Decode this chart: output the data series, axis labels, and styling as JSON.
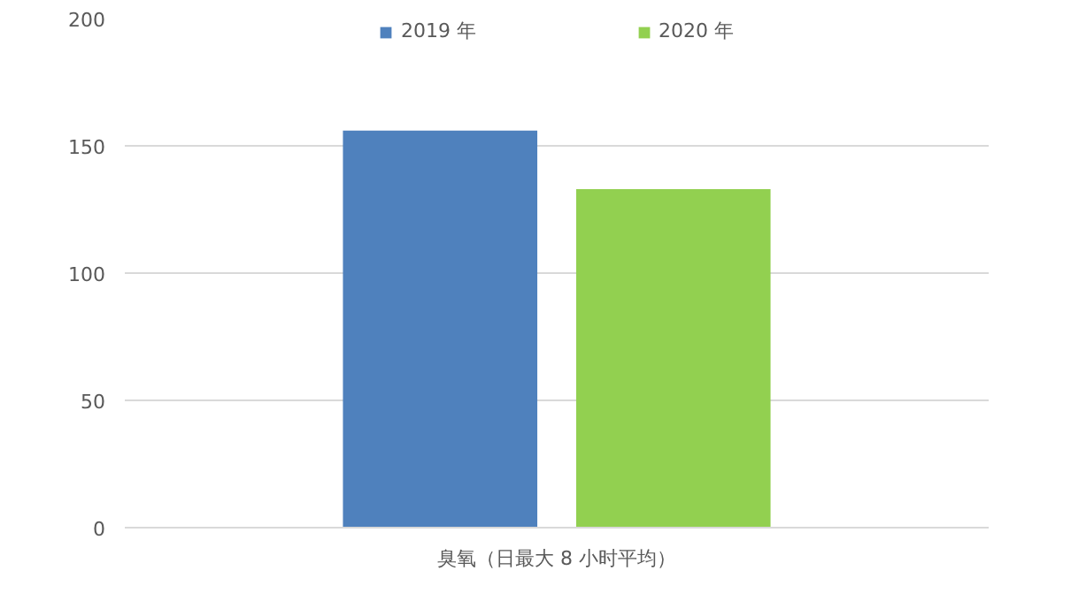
{
  "chart_data": {
    "type": "bar",
    "categories": [
      "臭氧（日最大 8 小时平均）"
    ],
    "series": [
      {
        "name": "2019 年",
        "color": "#4f81bd",
        "values": [
          156
        ]
      },
      {
        "name": "2020 年",
        "color": "#92d050",
        "values": [
          133
        ]
      }
    ],
    "ylim": [
      0,
      200
    ],
    "yticks": [
      0,
      50,
      100,
      150,
      200
    ],
    "grid": "y",
    "legend": "top"
  }
}
